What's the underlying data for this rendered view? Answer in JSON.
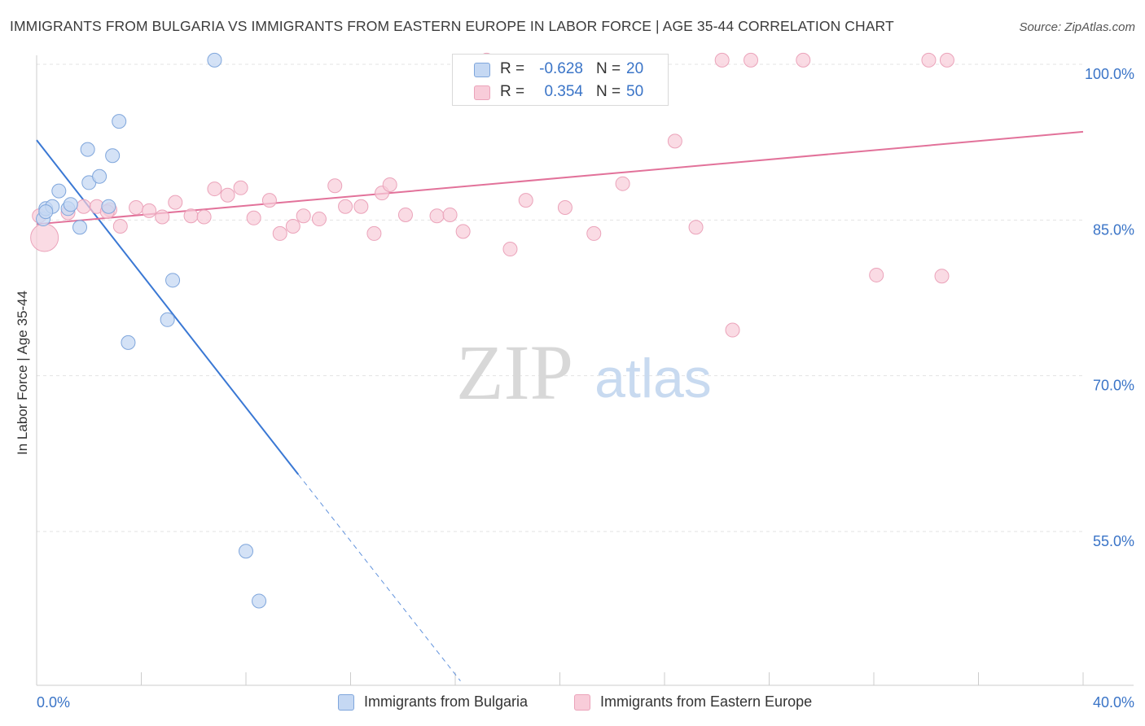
{
  "header": {
    "title": "IMMIGRANTS FROM BULGARIA VS IMMIGRANTS FROM EASTERN EUROPE IN LABOR FORCE | AGE 35-44 CORRELATION CHART",
    "source": "Source: ZipAtlas.com"
  },
  "watermark": {
    "zip": "ZIP",
    "atlas": "atlas"
  },
  "legend": {
    "rows": [
      {
        "r_label": "R =",
        "r_value": "-0.628",
        "n_label": "N =",
        "n_value": "20"
      },
      {
        "r_label": "R =",
        "r_value": "0.354",
        "n_label": "N =",
        "n_value": "50"
      }
    ]
  },
  "bottom_legend": {
    "items": [
      "Immigrants from Bulgaria",
      "Immigrants from Eastern Europe"
    ]
  },
  "chart_data": {
    "type": "scatter",
    "title": "IMMIGRANTS FROM BULGARIA VS IMMIGRANTS FROM EASTERN EUROPE IN LABOR FORCE | AGE 35-44 CORRELATION CHART",
    "xlabel": "",
    "ylabel": "In Labor Force | Age 35-44",
    "xlim": [
      0,
      40
    ],
    "ylim": [
      41,
      101.5
    ],
    "x_tick_labels": [
      "0.0%",
      "40.0%"
    ],
    "y_ticks": [
      55,
      70,
      85,
      100
    ],
    "y_tick_labels": [
      "55.0%",
      "70.0%",
      "85.0%",
      "100.0%"
    ],
    "grid": true,
    "legend_position": "top-center",
    "colors": {
      "bulgaria_fill": "#c5d8f3",
      "bulgaria_stroke": "#7fa6dc",
      "bulgaria_line": "#3a78d4",
      "eastern_fill": "#f8ccd9",
      "eastern_stroke": "#eba3ba",
      "eastern_line": "#e2729a",
      "tick_label": "#3a74c7"
    },
    "series": [
      {
        "name": "Immigrants from Bulgaria",
        "points": [
          [
            0.25,
            85.1
          ],
          [
            0.35,
            86.1
          ],
          [
            0.6,
            86.3
          ],
          [
            0.85,
            87.8
          ],
          [
            1.2,
            86.1
          ],
          [
            1.3,
            86.5
          ],
          [
            1.65,
            84.3
          ],
          [
            1.95,
            91.8
          ],
          [
            2.0,
            88.6
          ],
          [
            2.4,
            89.2
          ],
          [
            2.75,
            86.3
          ],
          [
            2.9,
            91.2
          ],
          [
            3.15,
            94.5
          ],
          [
            3.5,
            73.2
          ],
          [
            5.0,
            75.4
          ],
          [
            5.2,
            79.2
          ],
          [
            6.8,
            100.4
          ],
          [
            8.0,
            53.1
          ],
          [
            8.5,
            48.3
          ],
          [
            0.35,
            85.8
          ]
        ],
        "trend": {
          "x0": 0,
          "y0": 92.7,
          "x1": 10.0,
          "y1": 60.5,
          "dash_x1": 16.2,
          "dash_y1": 40.6
        }
      },
      {
        "name": "Immigrants from Eastern Europe",
        "points": [
          [
            0.3,
            83.3
          ],
          [
            1.2,
            85.7
          ],
          [
            1.8,
            86.3
          ],
          [
            2.3,
            86.3
          ],
          [
            2.8,
            86.0
          ],
          [
            3.2,
            84.4
          ],
          [
            3.8,
            86.2
          ],
          [
            4.3,
            85.9
          ],
          [
            4.8,
            85.3
          ],
          [
            5.3,
            86.7
          ],
          [
            5.9,
            85.4
          ],
          [
            6.4,
            85.3
          ],
          [
            6.8,
            88.0
          ],
          [
            7.3,
            87.4
          ],
          [
            7.8,
            88.1
          ],
          [
            8.3,
            85.2
          ],
          [
            8.9,
            86.9
          ],
          [
            9.3,
            83.7
          ],
          [
            9.8,
            84.4
          ],
          [
            10.2,
            85.4
          ],
          [
            10.8,
            85.1
          ],
          [
            11.4,
            88.3
          ],
          [
            11.8,
            86.3
          ],
          [
            12.4,
            86.3
          ],
          [
            12.9,
            83.7
          ],
          [
            13.2,
            87.6
          ],
          [
            13.5,
            88.4
          ],
          [
            14.1,
            85.5
          ],
          [
            15.3,
            85.4
          ],
          [
            15.8,
            85.5
          ],
          [
            16.3,
            83.9
          ],
          [
            17.2,
            100.4
          ],
          [
            18.1,
            82.2
          ],
          [
            18.7,
            86.9
          ],
          [
            20.2,
            86.2
          ],
          [
            21.1,
            100.2
          ],
          [
            21.3,
            83.7
          ],
          [
            22.4,
            88.5
          ],
          [
            24.4,
            92.6
          ],
          [
            25.2,
            84.3
          ],
          [
            26.2,
            100.4
          ],
          [
            26.6,
            74.4
          ],
          [
            27.3,
            100.4
          ],
          [
            29.3,
            100.4
          ],
          [
            32.1,
            79.7
          ],
          [
            34.1,
            100.4
          ],
          [
            34.6,
            79.6
          ],
          [
            34.8,
            100.4
          ],
          [
            0.1,
            85.4
          ],
          [
            2.7,
            85.8
          ]
        ],
        "trend": {
          "x0": 0,
          "y0": 84.6,
          "x1": 40,
          "y1": 93.5
        }
      }
    ]
  }
}
